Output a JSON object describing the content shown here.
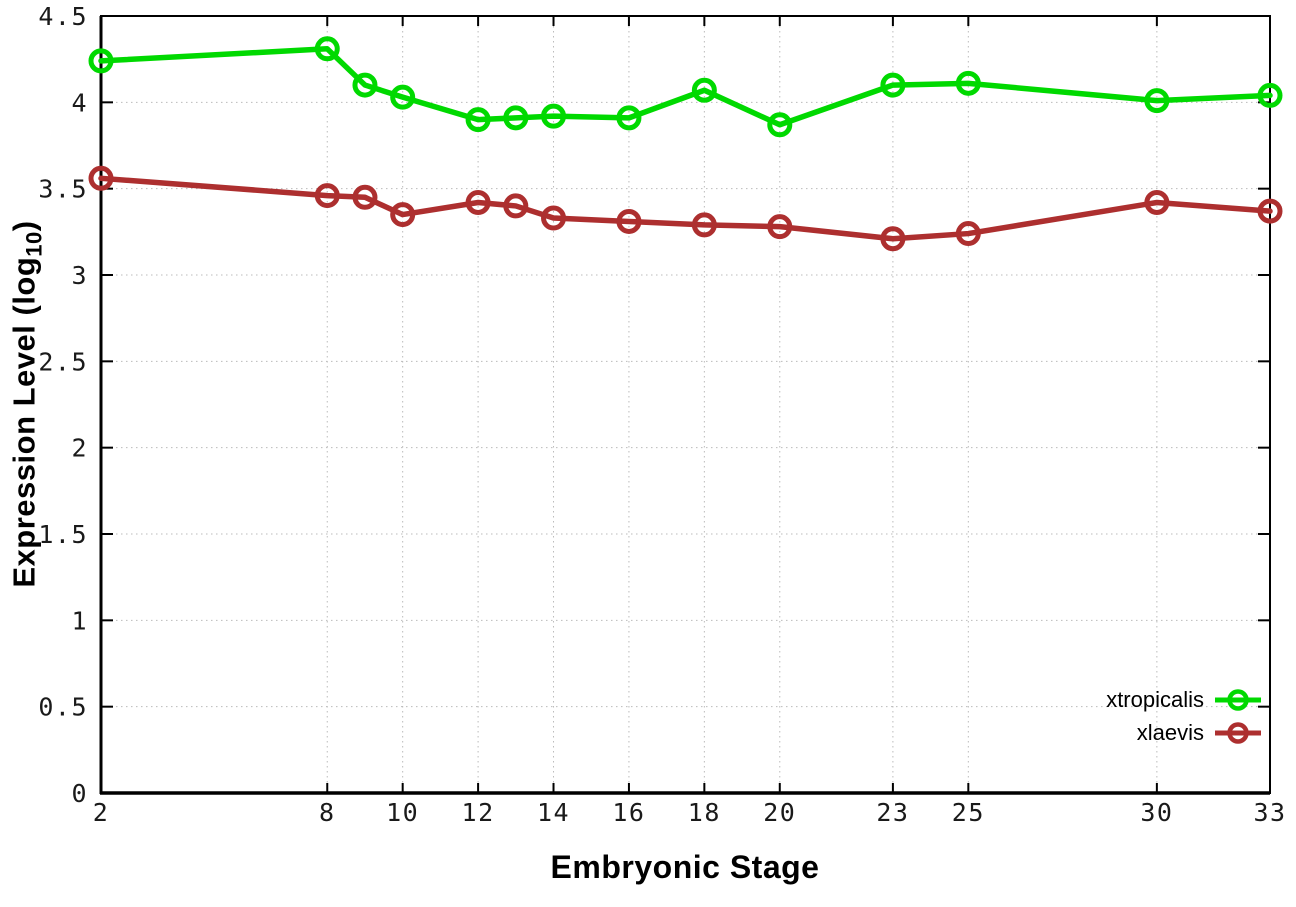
{
  "chart_data": {
    "type": "line",
    "x": [
      2,
      8,
      9,
      10,
      12,
      13,
      14,
      16,
      18,
      20,
      23,
      25,
      30,
      33
    ],
    "series": [
      {
        "name": "xtropicalis",
        "color": "#00d900",
        "values": [
          4.24,
          4.31,
          4.1,
          4.03,
          3.9,
          3.91,
          3.92,
          3.91,
          4.07,
          3.87,
          4.1,
          4.11,
          4.01,
          4.04
        ]
      },
      {
        "name": "xlaevis",
        "color": "#ad2f2f",
        "values": [
          3.56,
          3.46,
          3.45,
          3.35,
          3.42,
          3.4,
          3.33,
          3.31,
          3.29,
          3.28,
          3.21,
          3.24,
          3.42,
          3.37
        ]
      }
    ],
    "title": "",
    "xlabel": "Embryonic Stage",
    "ylabel": "Expression Level (log10)",
    "ylabel_parts": {
      "main": "Expression Level (log",
      "sub": "10",
      "close": ")"
    },
    "xlim": [
      2,
      33
    ],
    "ylim": [
      0,
      4.5
    ],
    "x_ticks": [
      2,
      8,
      10,
      12,
      14,
      16,
      18,
      20,
      23,
      25,
      30,
      33
    ],
    "y_ticks": [
      0,
      0.5,
      1,
      1.5,
      2,
      2.5,
      3,
      3.5,
      4,
      4.5
    ],
    "grid": true,
    "grid_color": "#bbbbbb",
    "axis_color": "#000000",
    "tick_label_color": "#1a1a1a",
    "legend_position": "bottom-right"
  }
}
